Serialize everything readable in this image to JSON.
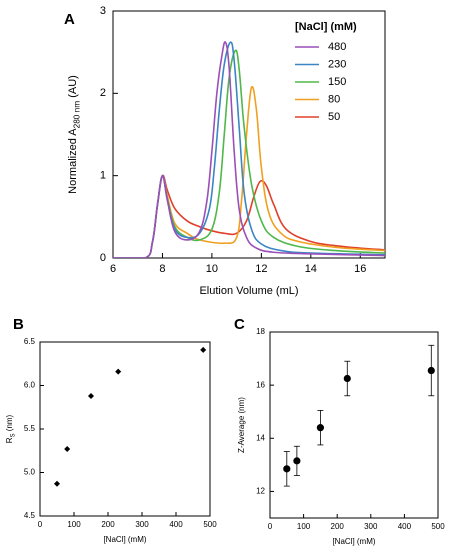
{
  "chart_data": [
    {
      "panel_label": "A",
      "type": "line",
      "xlabel": "Elution Volume (mL)",
      "ylabel": {
        "main": "Normalized A",
        "sub": "280 nm",
        "unit": " (AU)"
      },
      "xlim": [
        6,
        17
      ],
      "ylim": [
        0,
        3
      ],
      "xticks": [
        6,
        8,
        10,
        12,
        14,
        16
      ],
      "yticks": [
        0,
        1,
        2,
        3
      ],
      "legend_title": "[NaCl] (mM)",
      "legend_position": "top-right",
      "grid": false,
      "series": [
        {
          "name": "480",
          "color": "#9b4fb8",
          "x": [
            6,
            7.3,
            7.6,
            7.8,
            8.0,
            8.2,
            8.5,
            9.0,
            9.5,
            9.8,
            10.0,
            10.2,
            10.4,
            10.55,
            10.7,
            10.9,
            11.1,
            11.4,
            11.8,
            12.5,
            14,
            17
          ],
          "y": [
            0,
            0,
            0.2,
            0.65,
            1.0,
            0.7,
            0.32,
            0.22,
            0.32,
            0.7,
            1.3,
            2.0,
            2.45,
            2.62,
            2.3,
            1.3,
            0.6,
            0.25,
            0.12,
            0.07,
            0.05,
            0.03
          ]
        },
        {
          "name": "230",
          "color": "#3a86c4",
          "x": [
            6,
            7.3,
            7.6,
            7.8,
            8.0,
            8.2,
            8.5,
            9.0,
            9.5,
            9.9,
            10.1,
            10.3,
            10.5,
            10.75,
            10.9,
            11.1,
            11.3,
            11.6,
            12.0,
            12.8,
            14,
            17
          ],
          "y": [
            0,
            0,
            0.2,
            0.65,
            1.0,
            0.7,
            0.35,
            0.25,
            0.3,
            0.6,
            1.1,
            1.8,
            2.35,
            2.62,
            2.4,
            1.6,
            0.8,
            0.35,
            0.17,
            0.09,
            0.06,
            0.04
          ]
        },
        {
          "name": "150",
          "color": "#4fb84a",
          "x": [
            6,
            7.3,
            7.6,
            7.8,
            8.0,
            8.2,
            8.5,
            9.0,
            9.5,
            10.0,
            10.3,
            10.5,
            10.7,
            10.95,
            11.1,
            11.3,
            11.6,
            12.0,
            12.5,
            13.5,
            15,
            17
          ],
          "y": [
            0,
            0,
            0.2,
            0.65,
            1.0,
            0.72,
            0.38,
            0.25,
            0.22,
            0.35,
            0.8,
            1.5,
            2.2,
            2.52,
            2.3,
            1.6,
            0.9,
            0.45,
            0.25,
            0.14,
            0.09,
            0.06
          ]
        },
        {
          "name": "80",
          "color": "#f0a020",
          "x": [
            6,
            7.3,
            7.6,
            7.8,
            8.0,
            8.2,
            8.5,
            9.0,
            9.5,
            10.5,
            11.0,
            11.2,
            11.4,
            11.6,
            11.8,
            12.0,
            12.3,
            12.8,
            13.5,
            15,
            17
          ],
          "y": [
            0,
            0,
            0.2,
            0.65,
            1.0,
            0.75,
            0.42,
            0.3,
            0.22,
            0.18,
            0.25,
            0.7,
            1.5,
            2.07,
            1.8,
            1.1,
            0.55,
            0.3,
            0.2,
            0.13,
            0.09
          ]
        },
        {
          "name": "50",
          "color": "#e0402a",
          "x": [
            6,
            7.3,
            7.6,
            7.8,
            8.0,
            8.2,
            8.5,
            9.0,
            9.5,
            10.0,
            10.5,
            11.0,
            11.4,
            11.7,
            11.95,
            12.2,
            12.5,
            13.0,
            14.0,
            15.0,
            16.0,
            17
          ],
          "y": [
            0,
            0,
            0.2,
            0.65,
            1.0,
            0.82,
            0.6,
            0.45,
            0.38,
            0.33,
            0.3,
            0.3,
            0.45,
            0.75,
            0.93,
            0.88,
            0.65,
            0.35,
            0.2,
            0.15,
            0.12,
            0.1
          ]
        }
      ]
    },
    {
      "panel_label": "B",
      "type": "scatter",
      "xlabel": "[NaCl] (mM)",
      "ylabel": {
        "main": "R",
        "sub": "S",
        "unit": " (nm)"
      },
      "xlim": [
        0,
        500
      ],
      "ylim": [
        4.5,
        6.5
      ],
      "xticks": [
        0,
        100,
        200,
        300,
        400,
        500
      ],
      "yticks": [
        4.5,
        5.0,
        5.5,
        6.0,
        6.5
      ],
      "ytick_labels": [
        "4.5",
        "5.0",
        "5.5",
        "6.0",
        "6.5"
      ],
      "marker": "diamond",
      "points": [
        {
          "x": 50,
          "y": 4.87
        },
        {
          "x": 80,
          "y": 5.27
        },
        {
          "x": 150,
          "y": 5.88
        },
        {
          "x": 230,
          "y": 6.16
        },
        {
          "x": 480,
          "y": 6.41
        }
      ]
    },
    {
      "panel_label": "C",
      "type": "scatter",
      "xlabel": "[NaCl] (mM)",
      "ylabel": {
        "main": "Z-Average",
        "sub": "",
        "unit": " (nm)"
      },
      "xlim": [
        0,
        500
      ],
      "ylim": [
        11,
        18
      ],
      "xticks": [
        0,
        100,
        200,
        300,
        400,
        500
      ],
      "yticks": [
        12,
        14,
        16,
        18
      ],
      "ytick_labels": [
        "12",
        "14",
        "16",
        "18"
      ],
      "marker": "circle",
      "points": [
        {
          "x": 50,
          "y": 12.85,
          "err": 0.65
        },
        {
          "x": 80,
          "y": 13.15,
          "err": 0.55
        },
        {
          "x": 150,
          "y": 14.4,
          "err": 0.65
        },
        {
          "x": 230,
          "y": 16.25,
          "err": 0.65
        },
        {
          "x": 480,
          "y": 16.55,
          "err": 0.95
        }
      ]
    }
  ]
}
